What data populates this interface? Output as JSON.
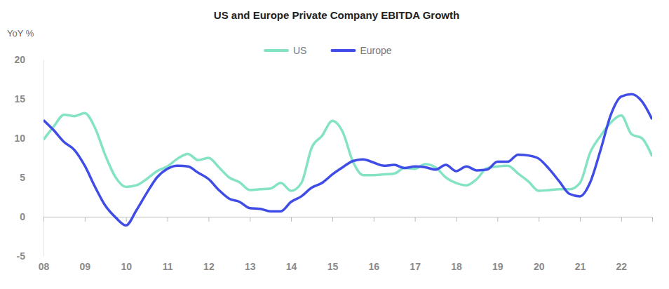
{
  "chart_data": {
    "type": "line",
    "title": "US and Europe Private Company EBITDA Growth",
    "y_label": "YoY %",
    "x": [
      2008,
      2008.25,
      2008.5,
      2008.75,
      2009,
      2009.25,
      2009.5,
      2009.75,
      2010,
      2010.25,
      2010.5,
      2010.75,
      2011,
      2011.25,
      2011.5,
      2011.75,
      2012,
      2012.25,
      2012.5,
      2012.75,
      2013,
      2013.25,
      2013.5,
      2013.75,
      2014,
      2014.25,
      2014.5,
      2014.75,
      2015,
      2015.25,
      2015.5,
      2015.75,
      2016,
      2016.25,
      2016.5,
      2016.75,
      2017,
      2017.25,
      2017.5,
      2017.75,
      2018,
      2018.25,
      2018.5,
      2018.75,
      2019,
      2019.25,
      2019.5,
      2019.75,
      2020,
      2020.25,
      2020.5,
      2020.75,
      2021,
      2021.25,
      2021.5,
      2021.75,
      2022,
      2022.25,
      2022.5,
      2022.75
    ],
    "series": [
      {
        "name": "US",
        "color": "#84e3c5",
        "values": [
          9.8,
          11.5,
          13.0,
          12.8,
          13.2,
          11.3,
          7.8,
          5.0,
          3.8,
          4.0,
          4.8,
          5.8,
          6.4,
          7.4,
          8.0,
          7.2,
          7.5,
          6.3,
          5.0,
          4.4,
          3.4,
          3.5,
          3.6,
          4.3,
          3.3,
          4.3,
          8.8,
          10.3,
          12.2,
          10.8,
          7.0,
          5.3,
          5.3,
          5.4,
          5.5,
          6.2,
          6.1,
          6.7,
          6.3,
          5.0,
          4.3,
          4.0,
          4.8,
          6.2,
          6.4,
          6.5,
          5.5,
          4.5,
          3.3,
          3.4,
          3.5,
          3.5,
          4.3,
          8.2,
          10.3,
          12.0,
          12.9,
          10.5,
          10.0,
          7.7
        ]
      },
      {
        "name": "Europe",
        "color": "#3f4de6",
        "values": [
          12.3,
          11.0,
          9.5,
          8.5,
          6.5,
          3.8,
          1.4,
          -0.1,
          -1.1,
          0.8,
          3.0,
          5.0,
          6.1,
          6.5,
          6.4,
          5.6,
          4.8,
          3.4,
          2.3,
          1.9,
          1.1,
          1.0,
          0.7,
          0.7,
          1.9,
          2.6,
          3.7,
          4.3,
          5.4,
          6.3,
          7.1,
          7.3,
          6.9,
          6.5,
          6.6,
          6.2,
          6.4,
          6.3,
          6.0,
          6.6,
          5.8,
          6.4,
          5.9,
          6.0,
          7.0,
          7.0,
          7.9,
          7.8,
          7.4,
          6.1,
          4.5,
          2.9,
          2.6,
          4.4,
          8.5,
          13.0,
          15.3,
          15.6,
          14.7,
          12.4
        ]
      }
    ],
    "xlim": [
      2008,
      2022.75
    ],
    "xticks": [
      {
        "value": 2008,
        "label": "08"
      },
      {
        "value": 2009,
        "label": "09"
      },
      {
        "value": 2010,
        "label": "10"
      },
      {
        "value": 2011,
        "label": "11"
      },
      {
        "value": 2012,
        "label": "12"
      },
      {
        "value": 2013,
        "label": "13"
      },
      {
        "value": 2014,
        "label": "14"
      },
      {
        "value": 2015,
        "label": "15"
      },
      {
        "value": 2016,
        "label": "16"
      },
      {
        "value": 2017,
        "label": "17"
      },
      {
        "value": 2018,
        "label": "18"
      },
      {
        "value": 2019,
        "label": "19"
      },
      {
        "value": 2020,
        "label": "20"
      },
      {
        "value": 2021,
        "label": "21"
      },
      {
        "value": 2022,
        "label": "22"
      }
    ],
    "ylim": [
      -5,
      20
    ],
    "yticks": [
      -5,
      0,
      5,
      10,
      15,
      20
    ],
    "grid": false,
    "legend": "top"
  }
}
